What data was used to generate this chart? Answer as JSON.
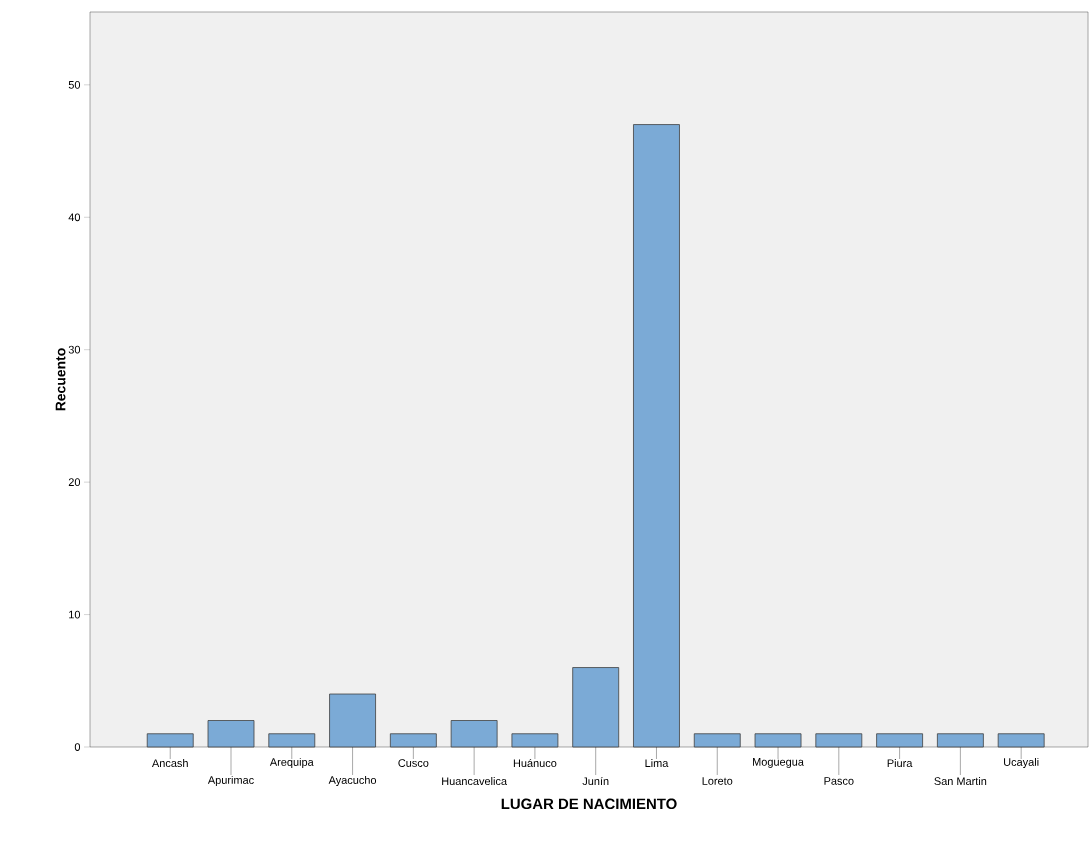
{
  "chart_data": {
    "type": "bar",
    "categories": [
      "Ancash",
      "Apurimac",
      "Arequipa",
      "Ayacucho",
      "Cusco",
      "Huancavelica",
      "Huánuco",
      "Junín",
      "Lima",
      "Loreto",
      "Moguegua",
      "Pasco",
      "Piura",
      "San Martin",
      "Ucayali"
    ],
    "values": [
      1,
      2,
      1,
      4,
      1,
      2,
      1,
      6,
      47,
      1,
      1,
      1,
      1,
      1,
      1
    ],
    "color": "#7baad6",
    "xlabel": "LUGAR DE NACIMIENTO",
    "ylabel": "Recuento",
    "ylim": [
      0,
      55.5
    ],
    "yticks": [
      0,
      10,
      20,
      30,
      40,
      50
    ]
  }
}
